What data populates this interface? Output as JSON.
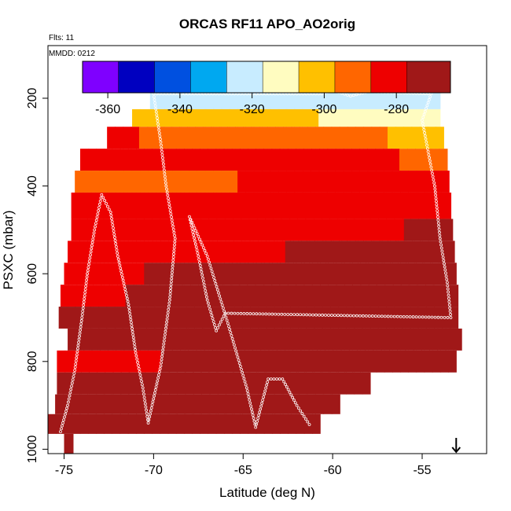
{
  "chart_data": {
    "type": "heatmap",
    "title": "ORCAS RF11 APO_AO2orig",
    "subtitle": "Flts: 11",
    "annotation": "MMDD: 0212",
    "xlabel": "Latitude (deg N)",
    "ylabel": "PSXC (mbar)",
    "xlim": [
      -75.9,
      -51.4
    ],
    "ylim": [
      1010,
      80
    ],
    "x_ticks": [
      -75,
      -70,
      -65,
      -60,
      -55
    ],
    "x_tick_labels": [
      "-75",
      "-70",
      "-65",
      "-60",
      "-55"
    ],
    "y_ticks": [
      200,
      400,
      600,
      800,
      1000
    ],
    "y_tick_labels": [
      "200",
      "400",
      "600",
      "800",
      "1000"
    ],
    "colorbar": {
      "range": [
        -367,
        -265
      ],
      "ticks": [
        -360,
        -340,
        -320,
        -300,
        -280
      ],
      "tick_labels": [
        "-360",
        "-340",
        "-320",
        "-300",
        "-280"
      ],
      "boundaries": [
        -367,
        -357,
        -347,
        -337,
        -327,
        -317,
        -307,
        -297,
        -287,
        -277,
        -265
      ],
      "colors": [
        "#7f00ff",
        "#0000c0",
        "#0050e0",
        "#00a8f0",
        "#c8ecff",
        "#fffcc0",
        "#ffc000",
        "#ff6600",
        "#ee0000",
        "#a01818"
      ]
    },
    "layers": [
      {
        "p_top": 175,
        "p_bot": 225,
        "lat_start": -70.2,
        "lat_end": -54.0,
        "v_start": -325,
        "v_end": -322
      },
      {
        "p_top": 225,
        "p_bot": 265,
        "lat_start": -71.2,
        "lat_end": -54.0,
        "v_start": -298,
        "v_end": -313
      },
      {
        "p_top": 265,
        "p_bot": 315,
        "lat_start": -72.6,
        "lat_end": -53.8,
        "v_start": -286,
        "v_end": -299
      },
      {
        "p_top": 315,
        "p_bot": 365,
        "lat_start": -74.1,
        "lat_end": -53.6,
        "v_start": -280,
        "v_end": -288
      },
      {
        "p_top": 365,
        "p_bot": 415,
        "lat_start": -74.4,
        "lat_end": -53.5,
        "v_start": -290,
        "v_end": -283
      },
      {
        "p_top": 415,
        "p_bot": 475,
        "lat_start": -74.6,
        "lat_end": -53.4,
        "v_start": -282,
        "v_end": -280
      },
      {
        "p_top": 475,
        "p_bot": 525,
        "lat_start": -74.6,
        "lat_end": -53.3,
        "v_start": -285,
        "v_end": -276
      },
      {
        "p_top": 525,
        "p_bot": 575,
        "lat_start": -74.8,
        "lat_end": -53.2,
        "v_start": -281,
        "v_end": -274
      },
      {
        "p_top": 575,
        "p_bot": 625,
        "lat_start": -75.0,
        "lat_end": -53.1,
        "v_start": -278,
        "v_end": -273
      },
      {
        "p_top": 625,
        "p_bot": 675,
        "lat_start": -75.2,
        "lat_end": -53.0,
        "v_start": -278,
        "v_end": -272
      },
      {
        "p_top": 675,
        "p_bot": 725,
        "lat_start": -75.3,
        "lat_end": -53.0,
        "v_start": -277,
        "v_end": -274
      },
      {
        "p_top": 725,
        "p_bot": 775,
        "lat_start": -74.8,
        "lat_end": -52.8,
        "v_start": -276,
        "v_end": -273
      },
      {
        "p_top": 775,
        "p_bot": 825,
        "lat_start": -75.4,
        "lat_end": -53.1,
        "v_start": -278,
        "v_end": -274
      },
      {
        "p_top": 825,
        "p_bot": 875,
        "lat_start": -75.4,
        "lat_end": -57.9,
        "v_start": -276,
        "v_end": -271
      },
      {
        "p_top": 875,
        "p_bot": 920,
        "lat_start": -75.5,
        "lat_end": -59.6,
        "v_start": -277,
        "v_end": -272
      },
      {
        "p_top": 920,
        "p_bot": 965,
        "lat_start": -75.9,
        "lat_end": -60.7,
        "v_start": -277,
        "v_end": -276
      },
      {
        "p_top": 965,
        "p_bot": 1010,
        "lat_start": -75.0,
        "lat_end": -74.5,
        "v_start": -274,
        "v_end": -274
      }
    ],
    "flight_track": [
      [
        -75.2,
        960
      ],
      [
        -74.8,
        900
      ],
      [
        -74.4,
        820
      ],
      [
        -74.0,
        700
      ],
      [
        -73.7,
        600
      ],
      [
        -73.3,
        500
      ],
      [
        -72.9,
        420
      ],
      [
        -72.4,
        460
      ],
      [
        -72.0,
        560
      ],
      [
        -71.4,
        670
      ],
      [
        -71.0,
        780
      ],
      [
        -70.6,
        860
      ],
      [
        -70.3,
        940
      ],
      [
        -69.6,
        810
      ],
      [
        -69.1,
        660
      ],
      [
        -68.8,
        520
      ],
      [
        -69.3,
        400
      ],
      [
        -69.6,
        300
      ],
      [
        -70.0,
        190
      ],
      [
        -62.0,
        190
      ],
      [
        -60.6,
        190
      ],
      [
        -60.0,
        182
      ],
      [
        -59.0,
        195
      ],
      [
        -58.0,
        185
      ],
      [
        -56.0,
        188
      ],
      [
        -54.5,
        190
      ],
      [
        -55.0,
        250
      ],
      [
        -54.3,
        400
      ],
      [
        -54.0,
        520
      ],
      [
        -53.6,
        620
      ],
      [
        -53.4,
        700
      ],
      [
        -66.0,
        690
      ],
      [
        -66.5,
        730
      ],
      [
        -67.0,
        660
      ],
      [
        -67.5,
        560
      ],
      [
        -68.0,
        470
      ],
      [
        -67.0,
        560
      ],
      [
        -65.8,
        720
      ],
      [
        -64.8,
        860
      ],
      [
        -64.3,
        950
      ],
      [
        -63.6,
        840
      ],
      [
        -62.8,
        840
      ],
      [
        -62.0,
        900
      ],
      [
        -61.2,
        950
      ]
    ],
    "arrow_lat": -53.1
  }
}
